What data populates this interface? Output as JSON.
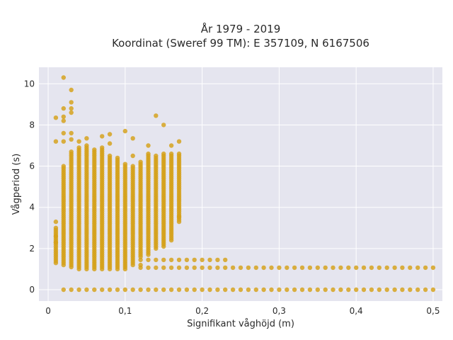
{
  "chart_data": {
    "type": "scatter",
    "title_line1": "År 1979 - 2019",
    "title_line2": "Koordinat (Sweref 99 TM): E 357109, N 6167506",
    "xlabel": "Signifikant våghöjd (m)",
    "ylabel": "Vågperiod (s)",
    "xlim": [
      -0.012,
      0.512
    ],
    "ylim": [
      -0.55,
      10.8
    ],
    "x_ticks": [
      0,
      0.1,
      0.2,
      0.3,
      0.4,
      0.5
    ],
    "x_tick_labels": [
      "0",
      "0,1",
      "0,2",
      "0,3",
      "0,4",
      "0,5"
    ],
    "y_ticks": [
      0,
      2,
      4,
      6,
      8,
      10
    ],
    "y_tick_labels": [
      "0",
      "2",
      "4",
      "6",
      "8",
      "10"
    ],
    "grid": true,
    "marker_color": "#d4a017",
    "background_color": "#e5e5ef",
    "zero_band": {
      "x_start": 0.02,
      "x_end": 0.5,
      "x_step": 0.01,
      "y": 0
    },
    "dense_columns": [
      {
        "x": 0.01,
        "y_min": 1.3,
        "y_max": 3.0
      },
      {
        "x": 0.02,
        "y_min": 1.2,
        "y_max": 6.0
      },
      {
        "x": 0.03,
        "y_min": 1.1,
        "y_max": 6.6
      },
      {
        "x": 0.04,
        "y_min": 1.0,
        "y_max": 6.9
      },
      {
        "x": 0.05,
        "y_min": 1.0,
        "y_max": 7.0
      },
      {
        "x": 0.06,
        "y_min": 1.0,
        "y_max": 6.8
      },
      {
        "x": 0.07,
        "y_min": 1.0,
        "y_max": 6.9
      },
      {
        "x": 0.08,
        "y_min": 1.0,
        "y_max": 6.5
      },
      {
        "x": 0.09,
        "y_min": 1.0,
        "y_max": 6.4
      },
      {
        "x": 0.1,
        "y_min": 1.0,
        "y_max": 6.1
      },
      {
        "x": 0.11,
        "y_min": 1.2,
        "y_max": 6.0
      },
      {
        "x": 0.12,
        "y_min": 1.6,
        "y_max": 6.2
      },
      {
        "x": 0.13,
        "y_min": 1.7,
        "y_max": 6.6
      },
      {
        "x": 0.14,
        "y_min": 2.0,
        "y_max": 6.5
      },
      {
        "x": 0.15,
        "y_min": 2.1,
        "y_max": 6.6
      },
      {
        "x": 0.16,
        "y_min": 2.4,
        "y_max": 6.6
      },
      {
        "x": 0.17,
        "y_min": 3.3,
        "y_max": 6.6
      }
    ],
    "low_rows": [
      {
        "y": 1.07,
        "x_start": 0.12,
        "x_end": 0.5,
        "x_step": 0.01
      },
      {
        "y": 1.45,
        "x_start": 0.12,
        "x_end": 0.23,
        "x_step": 0.01
      }
    ],
    "outliers": [
      {
        "x": 0.01,
        "y": 8.35
      },
      {
        "x": 0.01,
        "y": 7.2
      },
      {
        "x": 0.01,
        "y": 3.3
      },
      {
        "x": 0.02,
        "y": 10.3
      },
      {
        "x": 0.02,
        "y": 8.8
      },
      {
        "x": 0.02,
        "y": 8.4
      },
      {
        "x": 0.02,
        "y": 8.2
      },
      {
        "x": 0.02,
        "y": 7.6
      },
      {
        "x": 0.02,
        "y": 7.2
      },
      {
        "x": 0.03,
        "y": 9.7
      },
      {
        "x": 0.03,
        "y": 9.1
      },
      {
        "x": 0.03,
        "y": 8.8
      },
      {
        "x": 0.03,
        "y": 8.6
      },
      {
        "x": 0.03,
        "y": 7.6
      },
      {
        "x": 0.03,
        "y": 7.3
      },
      {
        "x": 0.03,
        "y": 6.7
      },
      {
        "x": 0.04,
        "y": 7.2
      },
      {
        "x": 0.05,
        "y": 7.35
      },
      {
        "x": 0.07,
        "y": 7.45
      },
      {
        "x": 0.08,
        "y": 7.55
      },
      {
        "x": 0.08,
        "y": 7.1
      },
      {
        "x": 0.1,
        "y": 7.7
      },
      {
        "x": 0.11,
        "y": 7.35
      },
      {
        "x": 0.11,
        "y": 6.5
      },
      {
        "x": 0.13,
        "y": 7.0
      },
      {
        "x": 0.14,
        "y": 8.45
      },
      {
        "x": 0.15,
        "y": 8.0
      },
      {
        "x": 0.16,
        "y": 7.0
      },
      {
        "x": 0.17,
        "y": 7.2
      },
      {
        "x": 0.17,
        "y": 3.55
      },
      {
        "x": 0.12,
        "y": 1.2
      },
      {
        "x": 0.01,
        "y": 2.6
      },
      {
        "x": 0.01,
        "y": 2.3
      }
    ]
  }
}
